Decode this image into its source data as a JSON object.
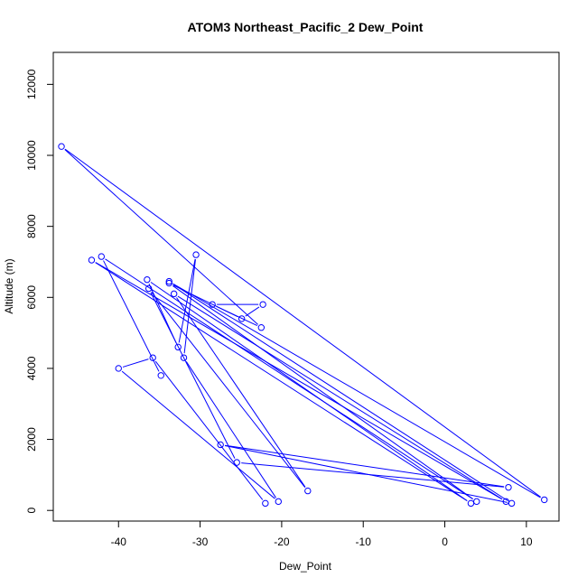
{
  "chart_data": {
    "type": "line",
    "title": "ATOM3 Northeast_Pacific_2 Dew_Point",
    "xlabel": "Dew_Point",
    "ylabel": "Altitude (m)",
    "xlim": [
      -48,
      14
    ],
    "ylim": [
      -300,
      12900
    ],
    "x_ticks": [
      -40,
      -30,
      -20,
      -10,
      0,
      10
    ],
    "y_ticks": [
      0,
      2000,
      4000,
      6000,
      8000,
      10000,
      12000
    ],
    "series_color": "#0000ff",
    "grid": false,
    "legend": "none",
    "series": [
      {
        "markers": "open-circle",
        "points": [
          {
            "x": -22.0,
            "y": 200
          },
          {
            "x": -35.8,
            "y": 4300
          },
          {
            "x": -40.0,
            "y": 4000
          },
          {
            "x": -20.4,
            "y": 250
          },
          {
            "x": -32.0,
            "y": 4300
          },
          {
            "x": -30.5,
            "y": 7200
          },
          {
            "x": -32.7,
            "y": 4600
          },
          {
            "x": -36.5,
            "y": 6500
          },
          {
            "x": 3.2,
            "y": 200
          },
          {
            "x": -43.3,
            "y": 7050
          },
          {
            "x": 7.5,
            "y": 250
          },
          {
            "x": -33.2,
            "y": 6100
          },
          {
            "x": -16.8,
            "y": 550
          },
          {
            "x": -36.3,
            "y": 6250
          },
          {
            "x": -25.5,
            "y": 1350
          },
          {
            "x": 7.8,
            "y": 650
          },
          {
            "x": -27.5,
            "y": 1850
          },
          {
            "x": 8.2,
            "y": 200
          },
          {
            "x": -33.8,
            "y": 6450
          },
          {
            "x": 12.2,
            "y": 300
          },
          {
            "x": -47.0,
            "y": 10250
          },
          {
            "x": -22.5,
            "y": 5150
          },
          {
            "x": -28.5,
            "y": 5800
          },
          {
            "x": -22.3,
            "y": 5800
          },
          {
            "x": -24.9,
            "y": 5400
          },
          {
            "x": -33.8,
            "y": 6400
          },
          {
            "x": 3.9,
            "y": 250
          },
          {
            "x": -42.1,
            "y": 7150
          },
          {
            "x": -34.8,
            "y": 3800
          }
        ]
      }
    ]
  }
}
